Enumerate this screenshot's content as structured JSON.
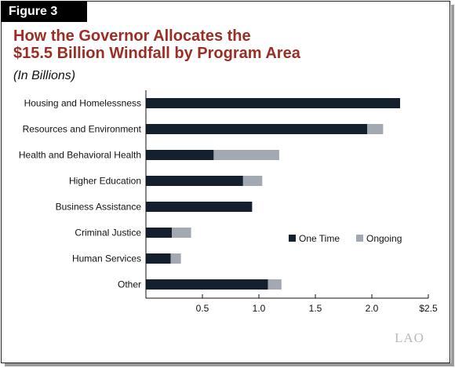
{
  "figure_label": "Figure 3",
  "logo_text": "LAO",
  "chart_data": {
    "type": "bar",
    "orientation": "horizontal",
    "stacked": true,
    "title": "How the Governor Allocates the\n$15.5 Billion Windfall by Program Area",
    "subtitle": "(In Billions)",
    "categories": [
      "Housing and Homelessness",
      "Resources and Environment",
      "Health and Behavioral Health",
      "Higher Education",
      "Business Assistance",
      "Criminal Justice",
      "Human Services",
      "Other"
    ],
    "series": [
      {
        "name": "One Time",
        "color": "#14202e",
        "values": [
          2.25,
          1.96,
          0.6,
          0.86,
          0.94,
          0.23,
          0.22,
          1.08
        ]
      },
      {
        "name": "Ongoing",
        "color": "#a3a9b2",
        "values": [
          0,
          0.14,
          0.58,
          0.17,
          0,
          0.17,
          0.09,
          0.12
        ]
      }
    ],
    "xlim": [
      0,
      2.5
    ],
    "xticks": [
      0.5,
      1.0,
      1.5,
      2.0,
      2.5
    ],
    "xtick_labels": [
      "0.5",
      "1.0",
      "1.5",
      "2.0",
      "$2.5"
    ],
    "grid": false,
    "legend_position": "right-middle"
  }
}
